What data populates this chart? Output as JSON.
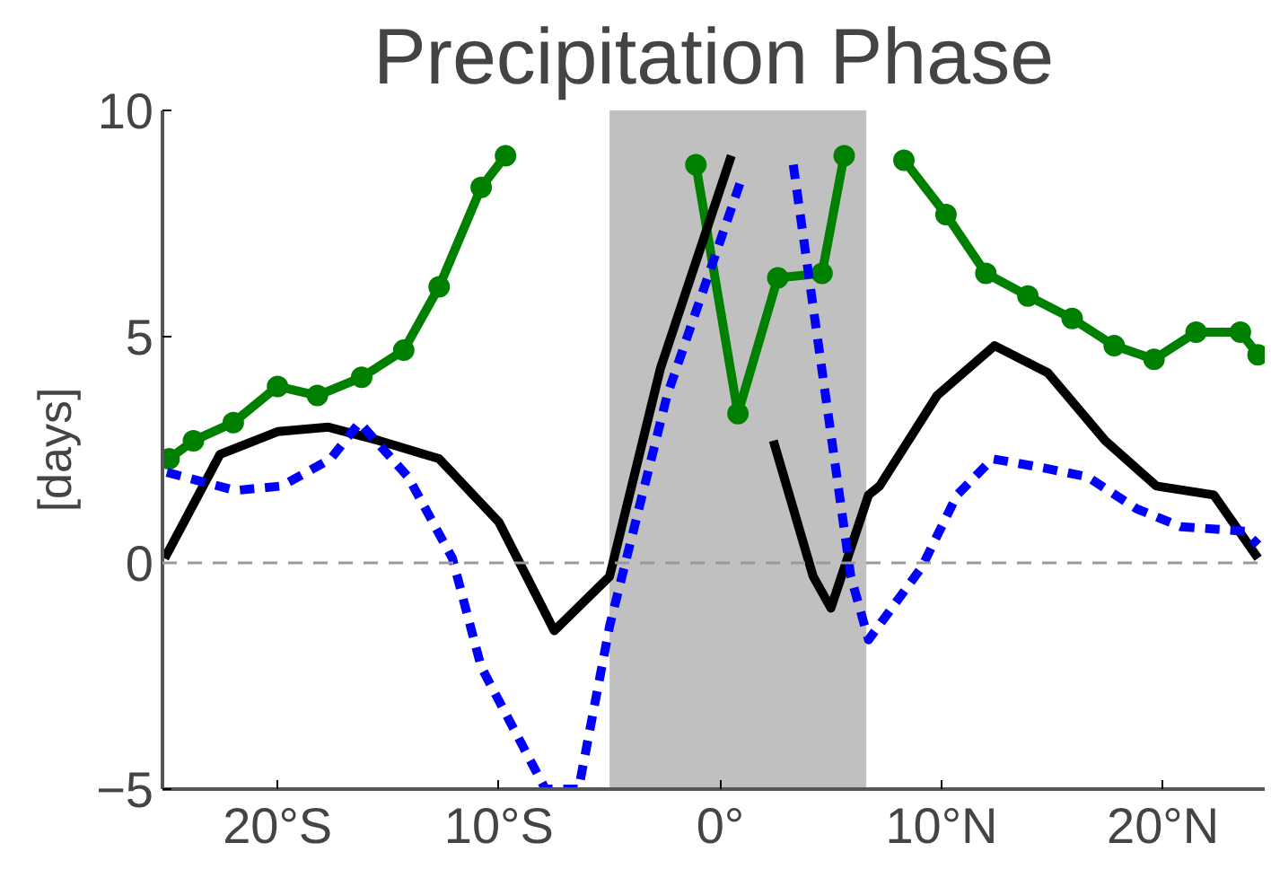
{
  "chart_data": {
    "type": "line",
    "title": "Precipitation Phase",
    "ylabel": "[days]",
    "xlim": [
      -25.2,
      24.6
    ],
    "ylim": [
      -5,
      10
    ],
    "xticks": [
      {
        "value": -20,
        "label": "20°S"
      },
      {
        "value": -10,
        "label": "10°S"
      },
      {
        "value": 0,
        "label": "0°"
      },
      {
        "value": 10,
        "label": "10°N"
      },
      {
        "value": 20,
        "label": "20°N"
      }
    ],
    "yticks": [
      -5,
      0,
      5,
      10
    ],
    "grid": false,
    "series": [
      {
        "color": "#008000",
        "marker": "circle",
        "line_style": "solid",
        "x": [
          -24.9,
          -23.8,
          -22,
          -20,
          -18.2,
          -16.2,
          -14.3,
          -12.7,
          -10.8,
          -9.7,
          -5,
          -1.1,
          0.8,
          2.6,
          4.6,
          5.6,
          7,
          8.3,
          10.2,
          12,
          13.9,
          15.9,
          17.8,
          19.6,
          21.5,
          23.5,
          24.3
        ],
        "values": [
          2.3,
          2.7,
          3.1,
          3.9,
          3.7,
          4.1,
          4.7,
          6.1,
          8.3,
          9.0,
          null,
          8.8,
          3.3,
          6.3,
          6.4,
          9.0,
          null,
          8.9,
          7.7,
          6.4,
          5.9,
          5.4,
          4.8,
          4.5,
          5.1,
          5.1,
          4.6
        ]
      },
      {
        "color": "#000000",
        "marker": "none",
        "line_style": "solid",
        "x": [
          -25.1,
          -22.6,
          -20,
          -17.7,
          -15.4,
          -12.7,
          -10,
          -7.5,
          -5,
          -2.7,
          0.5,
          1.2,
          2.4,
          4.2,
          5.0,
          6.7,
          7.2,
          9.8,
          12.4,
          14.8,
          17.4,
          19.7,
          22.3,
          24.3
        ],
        "values": [
          0.1,
          2.4,
          2.9,
          3.0,
          2.7,
          2.3,
          0.9,
          -1.5,
          -0.3,
          4.3,
          9.0,
          null,
          2.7,
          -0.3,
          -1.0,
          1.5,
          1.7,
          3.7,
          4.8,
          4.2,
          2.7,
          1.7,
          1.5,
          0.1
        ]
      },
      {
        "color": "#0000ff",
        "marker": "none",
        "line_style": "dashed",
        "x": [
          -25,
          -21.9,
          -19.8,
          -17.6,
          -16.3,
          -14.1,
          -12.1,
          -10.8,
          -7.9,
          -6.4,
          -5,
          -2.4,
          0.9,
          2.2,
          3.3,
          5.9,
          6.7,
          9.1,
          10.7,
          12.3,
          14.6,
          16.6,
          18.8,
          20.8,
          23.7,
          24.3
        ],
        "values": [
          2.0,
          1.6,
          1.7,
          2.3,
          3.1,
          1.9,
          0.1,
          -2.3,
          -5.0,
          -5.0,
          -1.4,
          3.7,
          8.4,
          null,
          8.8,
          -0.3,
          -1.7,
          -0.1,
          1.5,
          2.3,
          2.1,
          1.9,
          1.2,
          0.8,
          0.7,
          0.4
        ]
      }
    ],
    "ref_lines": [
      {
        "axis": "y",
        "value": 0,
        "color": "#999999",
        "line_style": "dashed"
      }
    ],
    "bands": [
      {
        "axis": "x",
        "from": -5,
        "to": 6.6,
        "color": "#c0c0c0"
      }
    ]
  }
}
